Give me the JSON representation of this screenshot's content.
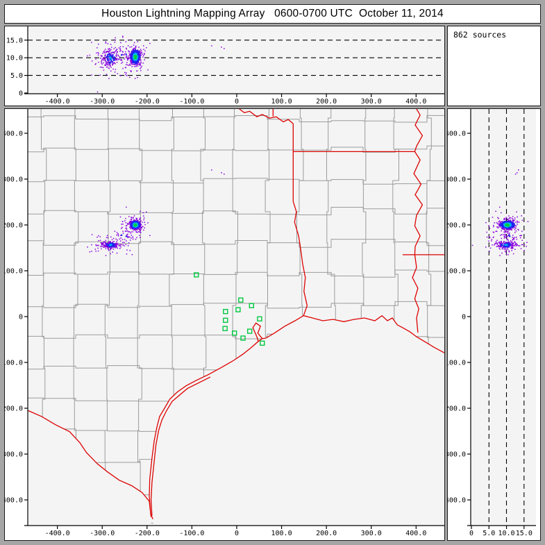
{
  "title": "Houston Lightning Mapping Array   0600-0700 UTC  October 11, 2014",
  "sources_panel": {
    "label": "862 sources"
  },
  "palette": {
    "canvas_bg": "#a6a6a6",
    "panel_bg": "#ffffff",
    "plot_bg": "#f4f4f4",
    "panel_border": "#1b1b1b",
    "axis_color": "#000000",
    "county_color": "#9b9b9b",
    "state_color": "#dd0000",
    "station_color": "#00c840",
    "density_low": "#8800dd",
    "density_mid": "#2222ee",
    "density_high": "#00bbee",
    "density_peak": "#00cc44"
  },
  "chart_data": {
    "type": "scatter",
    "title": "Houston Lightning Mapping Array   0600-0700 UTC  October 11, 2014",
    "total_sources": 862,
    "seed_points": 20141011,
    "seed_counties": 7,
    "axes": {
      "ew_km": {
        "lim": [
          -466,
          463
        ],
        "ticks": [
          {
            "v": -400,
            "label": "-400.0"
          },
          {
            "v": -300,
            "label": "-300.0"
          },
          {
            "v": -200,
            "label": "-200.0"
          },
          {
            "v": -100,
            "label": "-100.0"
          },
          {
            "v": 0,
            "label": "0"
          },
          {
            "v": 100,
            "label": "100.0"
          },
          {
            "v": 200,
            "label": "200.0"
          },
          {
            "v": 300,
            "label": "300.0"
          },
          {
            "v": 400,
            "label": "400.0"
          }
        ]
      },
      "ns_km": {
        "lim": [
          -456,
          453
        ],
        "ticks": [
          {
            "v": 400,
            "label": "400.0"
          },
          {
            "v": 300,
            "label": "300.0"
          },
          {
            "v": 200,
            "label": "200.0"
          },
          {
            "v": 100,
            "label": "100.0"
          },
          {
            "v": 0,
            "label": "0"
          },
          {
            "v": -100,
            "label": "-100.0"
          },
          {
            "v": -200,
            "label": "-200.0"
          },
          {
            "v": -300,
            "label": "-300.0"
          },
          {
            "v": -400,
            "label": "-400.0"
          }
        ]
      },
      "alt_km": {
        "lim": [
          -0.2,
          18.9
        ],
        "ticks": [
          {
            "v": 0,
            "label": "0"
          },
          {
            "v": 5,
            "label": "5.0"
          },
          {
            "v": 10,
            "label": "10.0"
          },
          {
            "v": 15,
            "label": "15.0"
          }
        ],
        "dashed_grid": [
          5,
          10,
          15
        ]
      }
    },
    "clusters": [
      {
        "name": "main-storm-cell",
        "n": 599,
        "ew": -226,
        "ns": 200,
        "alt": 10.3,
        "sx": 5.5,
        "sy": 4.5,
        "sa": 1.05,
        "wide_frac": 0.18,
        "wide_mult": 2.6,
        "th_green": 0.55,
        "th_cyan": 1.0,
        "th_blue": 1.9
      },
      {
        "name": "secondary-cell",
        "n": 225,
        "ew": -282,
        "ns": 156,
        "alt": 9.9,
        "sx": 11,
        "sy": 4.5,
        "sa": 1.5,
        "wide_frac": 0.25,
        "wide_mult": 2.2,
        "th_green": -1,
        "th_cyan": 0.45,
        "th_blue": 1.1
      },
      {
        "name": "scattered-bridge",
        "n": 35,
        "ew": -253,
        "ns": 176,
        "alt": 10.8,
        "sx": 16,
        "sy": 10,
        "sa": 1.4,
        "wide_frac": 0,
        "wide_mult": 1,
        "th_green": -1,
        "th_cyan": -1,
        "th_blue": 0.5
      }
    ],
    "stray_points": [
      [
        -56,
        320,
        13.4
      ],
      [
        -34,
        314,
        13.0
      ],
      [
        -28,
        311,
        12.6
      ]
    ],
    "stations_km": [
      [
        -90,
        91
      ],
      [
        9,
        36
      ],
      [
        3,
        15
      ],
      [
        33,
        24
      ],
      [
        -25,
        11
      ],
      [
        -25,
        -8
      ],
      [
        -26,
        -26
      ],
      [
        -5,
        -36
      ],
      [
        29,
        -32
      ],
      [
        14,
        -47
      ],
      [
        51,
        -5
      ],
      [
        57,
        -58
      ]
    ]
  },
  "map_geometry": {
    "state_lines": [
      {
        "name": "red-river-tx-ok",
        "pts": [
          [
            6,
            453
          ],
          [
            17,
            445
          ],
          [
            29,
            448
          ],
          [
            45,
            436
          ],
          [
            57,
            441
          ],
          [
            73,
            433
          ],
          [
            88,
            436
          ],
          [
            104,
            425
          ],
          [
            115,
            430
          ],
          [
            126,
            421
          ]
        ]
      },
      {
        "name": "ok-ar-border",
        "pts": [
          [
            81,
            453
          ],
          [
            81,
            437
          ]
        ]
      },
      {
        "name": "tx-ar-la-border",
        "pts": [
          [
            126,
            421
          ],
          [
            126,
            251
          ]
        ]
      },
      {
        "name": "ar-la-border",
        "pts": [
          [
            126,
            360
          ],
          [
            397,
            360
          ]
        ]
      },
      {
        "name": "sabine-river",
        "pts": [
          [
            126,
            251
          ],
          [
            133,
            229
          ],
          [
            129,
            206
          ],
          [
            138,
            176
          ],
          [
            143,
            145
          ],
          [
            147,
            115
          ],
          [
            153,
            85
          ],
          [
            150,
            55
          ],
          [
            157,
            24
          ],
          [
            149,
            2
          ]
        ]
      },
      {
        "name": "mississippi-river",
        "pts": [
          [
            401,
            453
          ],
          [
            409,
            440
          ],
          [
            398,
            418
          ],
          [
            414,
            395
          ],
          [
            401,
            372
          ],
          [
            397,
            360
          ],
          [
            409,
            342
          ],
          [
            395,
            312
          ],
          [
            411,
            289
          ],
          [
            398,
            266
          ],
          [
            414,
            244
          ],
          [
            401,
            221
          ],
          [
            397,
            198
          ],
          [
            409,
            176
          ],
          [
            398,
            153
          ],
          [
            397,
            135
          ],
          [
            401,
            107
          ],
          [
            392,
            85
          ],
          [
            404,
            62
          ],
          [
            397,
            39
          ],
          [
            406,
            17
          ],
          [
            401,
            -3
          ],
          [
            404,
            -35
          ]
        ]
      },
      {
        "name": "la-ms-border",
        "pts": [
          [
            370,
            135
          ],
          [
            470,
            135
          ]
        ]
      },
      {
        "name": "rio-grande",
        "pts": [
          [
            -466,
            -205
          ],
          [
            -463,
            -206
          ],
          [
            -435,
            -218
          ],
          [
            -404,
            -236
          ],
          [
            -373,
            -251
          ],
          [
            -350,
            -275
          ],
          [
            -335,
            -297
          ],
          [
            -311,
            -321
          ],
          [
            -288,
            -339
          ],
          [
            -262,
            -357
          ],
          [
            -234,
            -369
          ],
          [
            -211,
            -384
          ],
          [
            -195,
            -403
          ],
          [
            -191,
            -437
          ]
        ]
      },
      {
        "name": "gulf-coast",
        "pts": [
          [
            -187,
            -442
          ],
          [
            -192,
            -430
          ],
          [
            -195,
            -392
          ],
          [
            -194,
            -354
          ],
          [
            -189,
            -309
          ],
          [
            -184,
            -271
          ],
          [
            -178,
            -241
          ],
          [
            -172,
            -218
          ],
          [
            -161,
            -200
          ],
          [
            -149,
            -180
          ],
          [
            -133,
            -165
          ],
          [
            -113,
            -151
          ],
          [
            -90,
            -139
          ],
          [
            -64,
            -127
          ],
          [
            -36,
            -112
          ],
          [
            -9,
            -97
          ],
          [
            14,
            -82
          ],
          [
            33,
            -67
          ],
          [
            48,
            -54
          ],
          [
            57,
            -48
          ],
          [
            65,
            -47
          ],
          [
            84,
            -36
          ],
          [
            107,
            -21
          ],
          [
            130,
            -9
          ],
          [
            149,
            2
          ],
          [
            169,
            -3
          ],
          [
            192,
            -9
          ],
          [
            215,
            -6
          ],
          [
            239,
            -11
          ],
          [
            262,
            -6
          ],
          [
            285,
            -3
          ],
          [
            308,
            -9
          ],
          [
            324,
            2
          ],
          [
            336,
            -9
          ],
          [
            347,
            -3
          ],
          [
            358,
            -18
          ],
          [
            370,
            -24
          ],
          [
            386,
            -33
          ],
          [
            401,
            -44
          ],
          [
            420,
            -55
          ],
          [
            440,
            -67
          ],
          [
            463,
            -79
          ]
        ]
      },
      {
        "name": "galveston-bay",
        "pts": [
          [
            48,
            -54
          ],
          [
            45,
            -44
          ],
          [
            36,
            -24
          ],
          [
            43,
            -14
          ],
          [
            53,
            -21
          ],
          [
            47,
            -36
          ],
          [
            57,
            -48
          ]
        ]
      },
      {
        "name": "barrier-islands",
        "pts": [
          [
            -59,
            -132
          ],
          [
            -110,
            -157
          ],
          [
            -144,
            -185
          ],
          [
            -157,
            -206
          ],
          [
            -167,
            -226
          ],
          [
            -174,
            -248
          ],
          [
            -180,
            -279
          ],
          [
            -184,
            -316
          ],
          [
            -189,
            -362
          ],
          [
            -191,
            -400
          ],
          [
            -189,
            -434
          ]
        ]
      }
    ],
    "gulf_mask_extra": [
      [
        466,
        -85
      ],
      [
        466,
        -460
      ],
      [
        -185,
        -460
      ]
    ],
    "mexico_mask_extra": [
      [
        -191,
        -460
      ],
      [
        -466,
        -460
      ]
    ]
  }
}
